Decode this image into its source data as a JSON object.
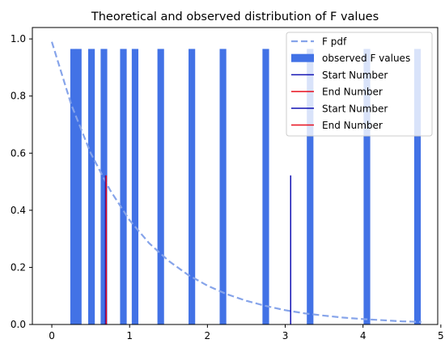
{
  "chart_data": {
    "type": "bar",
    "title": "Theoretical and observed distribution of F values",
    "xlabel": "",
    "ylabel": "",
    "xlim": [
      -0.25,
      4.96
    ],
    "ylim": [
      0,
      1.04
    ],
    "x_ticks": [
      0,
      1,
      2,
      3,
      4,
      5
    ],
    "y_ticks": [
      0.0,
      0.2,
      0.4,
      0.6,
      0.8,
      1.0
    ],
    "grid": false,
    "legend_position": "top-right",
    "colors": {
      "pdf": "#86a4ea",
      "bars": "#4272e6",
      "start": "#1414b4",
      "end": "#e8101e"
    },
    "series": [
      {
        "name": "F pdf",
        "kind": "dashed-line",
        "x": [
          0.0,
          0.25,
          0.5,
          0.75,
          1.0,
          1.25,
          1.5,
          1.75,
          2.0,
          2.25,
          2.5,
          2.75,
          3.0,
          3.25,
          3.5,
          3.75,
          4.0,
          4.25,
          4.5,
          4.75
        ],
        "values": [
          0.99,
          0.77,
          0.6,
          0.47,
          0.365,
          0.285,
          0.223,
          0.174,
          0.136,
          0.106,
          0.083,
          0.065,
          0.05,
          0.039,
          0.031,
          0.024,
          0.019,
          0.015,
          0.011,
          0.009
        ]
      },
      {
        "name": "observed F values",
        "kind": "bars",
        "x": [
          0.28,
          0.34,
          0.51,
          0.67,
          0.92,
          1.07,
          1.4,
          1.8,
          2.2,
          2.75,
          3.32,
          4.05,
          4.7
        ],
        "values": [
          0.965,
          0.965,
          0.965,
          0.965,
          0.965,
          0.965,
          0.965,
          0.965,
          0.965,
          0.965,
          0.965,
          0.965,
          0.965
        ],
        "bar_width": 0.085
      },
      {
        "name": "Start Number",
        "kind": "vline",
        "x": 0.69,
        "values": [
          0,
          0.522
        ]
      },
      {
        "name": "End Number",
        "kind": "vline",
        "x": 0.7,
        "values": [
          0,
          0.522
        ]
      },
      {
        "name": "Start Number",
        "kind": "vline",
        "x": 3.07,
        "values": [
          0,
          0.522
        ]
      },
      {
        "name": "End Number",
        "kind": "vline",
        "x": 3.07,
        "values": [
          0,
          0.0
        ]
      }
    ],
    "legend": [
      "F pdf",
      "observed F values",
      "Start Number",
      "End Number",
      "Start Number",
      "End Number"
    ]
  }
}
